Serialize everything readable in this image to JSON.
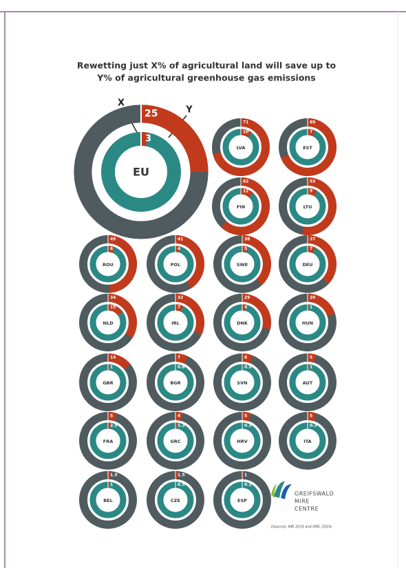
{
  "title": [
    "Rewetting just X% of agricultural land will save up to",
    "Y% of agricultural greenhouse gas emissions"
  ],
  "annotations": {
    "x": "X",
    "y": "Y"
  },
  "logo": [
    "GREIFSWALD",
    "MIRE",
    "CENTRE"
  ],
  "source": "(Sources: NIR 2019 and GMC 2019)",
  "chart_data": [
    {
      "type": "donut",
      "label": "EU",
      "values": [
        25,
        3
      ]
    },
    {
      "type": "donut",
      "label": "LVA",
      "values": [
        71,
        10
      ]
    },
    {
      "type": "donut",
      "label": "EST",
      "values": [
        69,
        7
      ]
    },
    {
      "type": "donut",
      "label": "FIN",
      "values": [
        62,
        12
      ]
    },
    {
      "type": "donut",
      "label": "LTU",
      "values": [
        53,
        9
      ]
    },
    {
      "type": "donut",
      "label": "ROU",
      "values": [
        49,
        6
      ]
    },
    {
      "type": "donut",
      "label": "POL",
      "values": [
        41,
        4
      ]
    },
    {
      "type": "donut",
      "label": "SWE",
      "values": [
        38,
        5
      ]
    },
    {
      "type": "donut",
      "label": "DEU",
      "values": [
        37,
        7
      ]
    },
    {
      "type": "donut",
      "label": "NLD",
      "values": [
        34,
        15
      ]
    },
    {
      "type": "donut",
      "label": "IRL",
      "values": [
        32,
        7
      ]
    },
    {
      "type": "donut",
      "label": "DNK",
      "values": [
        29,
        4
      ]
    },
    {
      "type": "donut",
      "label": "HUN",
      "values": [
        20,
        1
      ]
    },
    {
      "type": "donut",
      "label": "GBR",
      "values": [
        14,
        1
      ]
    },
    {
      "type": "donut",
      "label": "BGR",
      "values": [
        7,
        0.6
      ]
    },
    {
      "type": "donut",
      "label": "SVN",
      "values": [
        6,
        0.5
      ]
    },
    {
      "type": "donut",
      "label": "AUT",
      "values": [
        5,
        1
      ]
    },
    {
      "type": "donut",
      "label": "FRA",
      "values": [
        5,
        2.5
      ]
    },
    {
      "type": "donut",
      "label": "GRC",
      "values": [
        4,
        1.3
      ]
    },
    {
      "type": "donut",
      "label": "HRV",
      "values": [
        5,
        0.3
      ]
    },
    {
      "type": "donut",
      "label": "ITA",
      "values": [
        5,
        0.3
      ]
    },
    {
      "type": "donut",
      "label": "BEL",
      "values": [
        1.5,
        1
      ]
    },
    {
      "type": "donut",
      "label": "CZE",
      "values": [
        1.5,
        0.5
      ]
    },
    {
      "type": "donut",
      "label": "ESP",
      "values": [
        1,
        0.1
      ]
    }
  ]
}
